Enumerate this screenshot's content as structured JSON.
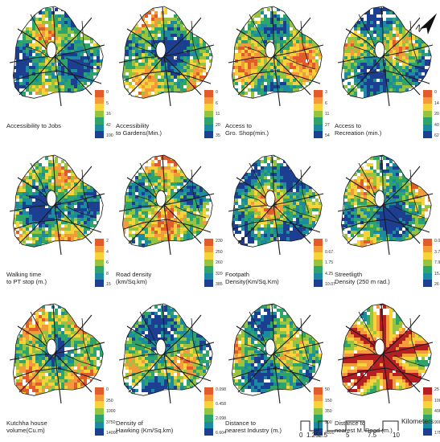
{
  "figure": {
    "panels": [
      {
        "id": "accessibility-jobs",
        "caption": [
          "Accessibility to Jobs"
        ],
        "legend_ticks": [
          "0",
          "5",
          "16",
          "42",
          "100"
        ],
        "palette": [
          "#e15c2a",
          "#f39a3a",
          "#f7d23b",
          "#96c43e",
          "#2ea46a",
          "#1c8aa1",
          "#1d3f91"
        ]
      },
      {
        "id": "accessibility-gardens",
        "caption": [
          "Accessibility",
          "to Gardens(Min.)"
        ],
        "legend_ticks": [
          "0",
          "6",
          "11",
          "20",
          "35"
        ],
        "palette": [
          "#e15c2a",
          "#f39a3a",
          "#f7d23b",
          "#96c43e",
          "#2ea46a",
          "#1c8aa1",
          "#1d3f91"
        ]
      },
      {
        "id": "access-grocery",
        "caption": [
          "Access to",
          "Gro. Shop(min.)"
        ],
        "legend_ticks": [
          "3",
          "6",
          "11",
          "27",
          "54"
        ],
        "palette": [
          "#e15c2a",
          "#f39a3a",
          "#f7d23b",
          "#96c43e",
          "#2ea46a",
          "#1c8aa1",
          "#1d3f91"
        ]
      },
      {
        "id": "access-recreation",
        "caption": [
          "Access to",
          "Recreation (min.)"
        ],
        "legend_ticks": [
          "0",
          "14",
          "20",
          "40",
          "62"
        ],
        "palette": [
          "#e15c2a",
          "#f39a3a",
          "#f7d23b",
          "#96c43e",
          "#2ea46a",
          "#1c8aa1",
          "#1d3f91"
        ]
      },
      {
        "id": "walking-time",
        "caption": [
          "Walking time",
          "to PT stop (m.)"
        ],
        "legend_ticks": [
          "2",
          "4",
          "6",
          "8",
          "15"
        ],
        "palette": [
          "#e15c2a",
          "#f39a3a",
          "#f7d23b",
          "#96c43e",
          "#2ea46a",
          "#1c8aa1",
          "#1d3f91"
        ]
      },
      {
        "id": "road-density",
        "caption": [
          "Road density",
          "(km/Sq.km)"
        ],
        "legend_ticks": [
          "230",
          "250",
          "260",
          "320",
          "385"
        ],
        "palette": [
          "#e15c2a",
          "#f39a3a",
          "#f7d23b",
          "#96c43e",
          "#2ea46a",
          "#1c8aa1",
          "#1d3f91"
        ]
      },
      {
        "id": "footpath-density",
        "caption": [
          "Footpath",
          "Density(Km/Sq.Km)"
        ],
        "legend_ticks": [
          "0",
          "0.67",
          "1.75",
          "4.25",
          "10.07"
        ],
        "palette": [
          "#e15c2a",
          "#f39a3a",
          "#f7d23b",
          "#96c43e",
          "#2ea46a",
          "#1c8aa1",
          "#1d3f91"
        ]
      },
      {
        "id": "streetlight-density",
        "caption": [
          "Streetligth",
          "Density (250 m rad.)"
        ],
        "legend_ticks": [
          "0.05",
          "3.73",
          "7.90",
          "15.16",
          "26"
        ],
        "palette": [
          "#e15c2a",
          "#f39a3a",
          "#f7d23b",
          "#96c43e",
          "#2ea46a",
          "#1c8aa1",
          "#1d3f91"
        ]
      },
      {
        "id": "kutchha-house",
        "caption": [
          "Kutchha house",
          "volume(Cu.m)"
        ],
        "legend_ticks": [
          "0",
          "250",
          "1000",
          "3750",
          "14000"
        ],
        "palette": [
          "#e15c2a",
          "#f39a3a",
          "#f7d23b",
          "#96c43e",
          "#2ea46a",
          "#1c8aa1",
          "#1d3f91"
        ]
      },
      {
        "id": "hawking-density",
        "caption": [
          "Density of",
          "Hawking (Km/Sq.km)"
        ],
        "legend_ticks": [
          "0.098",
          "0.458",
          "2.098",
          "6.604"
        ],
        "palette": [
          "#e15c2a",
          "#f39a3a",
          "#f7d23b",
          "#96c43e",
          "#2ea46a",
          "#1c8aa1",
          "#1d3f91"
        ]
      },
      {
        "id": "distance-industry",
        "caption": [
          "Distance to",
          "nearest Industry (m.)"
        ],
        "legend_ticks": [
          "50",
          "150",
          "350",
          "900",
          "2800"
        ],
        "palette": [
          "#e15c2a",
          "#f39a3a",
          "#f7d23b",
          "#96c43e",
          "#2ea46a",
          "#1c8aa1",
          "#1d3f91"
        ]
      },
      {
        "id": "distance-road",
        "caption": [
          "Distance to",
          "nearest M. Road (m.)"
        ],
        "legend_ticks": [
          "25",
          "100",
          "400",
          "900",
          "1750"
        ],
        "palette": [
          "#b51f24",
          "#f39a3a",
          "#f7d23b",
          "#96c43e",
          "#2ea46a",
          "#1c8aa1",
          "#1d3f91"
        ]
      }
    ]
  },
  "scale_bar": {
    "units": "Kilometers",
    "labels": [
      "0",
      "1.25",
      "2.5",
      "5",
      "7.5",
      "10"
    ]
  },
  "north_arrow": {
    "label": "N"
  },
  "colors": {
    "road": "#1a1a1a",
    "boundary": "#1a1a1a"
  }
}
